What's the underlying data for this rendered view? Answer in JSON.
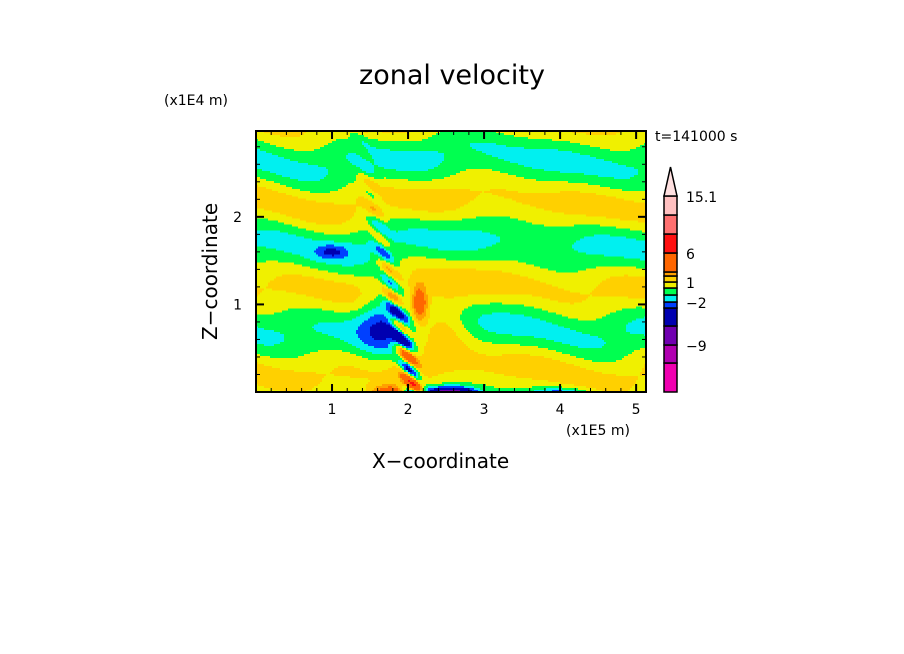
{
  "chart_data": {
    "type": "heatmap",
    "title": "zonal velocity",
    "xlabel": "X−coordinate",
    "ylabel": "Z−coordinate",
    "x_unit": "(x1E5 m)",
    "y_unit": "(x1E4 m)",
    "annotation": "t=141000 s",
    "xlim": [
      0,
      5.13
    ],
    "ylim": [
      0,
      2.98
    ],
    "xticks": [
      {
        "v": 1,
        "label": "1"
      },
      {
        "v": 2,
        "label": "2"
      },
      {
        "v": 3,
        "label": "3"
      },
      {
        "v": 4,
        "label": "4"
      },
      {
        "v": 5,
        "label": "5"
      }
    ],
    "yticks": [
      {
        "v": 1,
        "label": "1"
      },
      {
        "v": 2,
        "label": "2"
      }
    ],
    "colorbar": {
      "levels": [
        -15,
        -12,
        -9,
        -6,
        -3,
        -2,
        -1,
        0,
        1,
        2,
        3,
        6,
        9,
        12,
        15.1
      ],
      "colors": [
        "#f000b0",
        "#b000b0",
        "#7000b0",
        "#0000b0",
        "#0040ff",
        "#00f0f0",
        "#00ff50",
        "#f0f000",
        "#ffd000",
        "#ffa000",
        "#ff6600",
        "#ff1010",
        "#ff7070",
        "#ffc0c0"
      ],
      "over_color": "#ffe0e0",
      "labels": [
        {
          "v": 15.1,
          "label": "15.1"
        },
        {
          "v": 6,
          "label": "6"
        },
        {
          "v": 1,
          "label": "1"
        },
        {
          "v": -2,
          "label": "−2"
        },
        {
          "v": -9,
          "label": "−9"
        }
      ]
    }
  }
}
